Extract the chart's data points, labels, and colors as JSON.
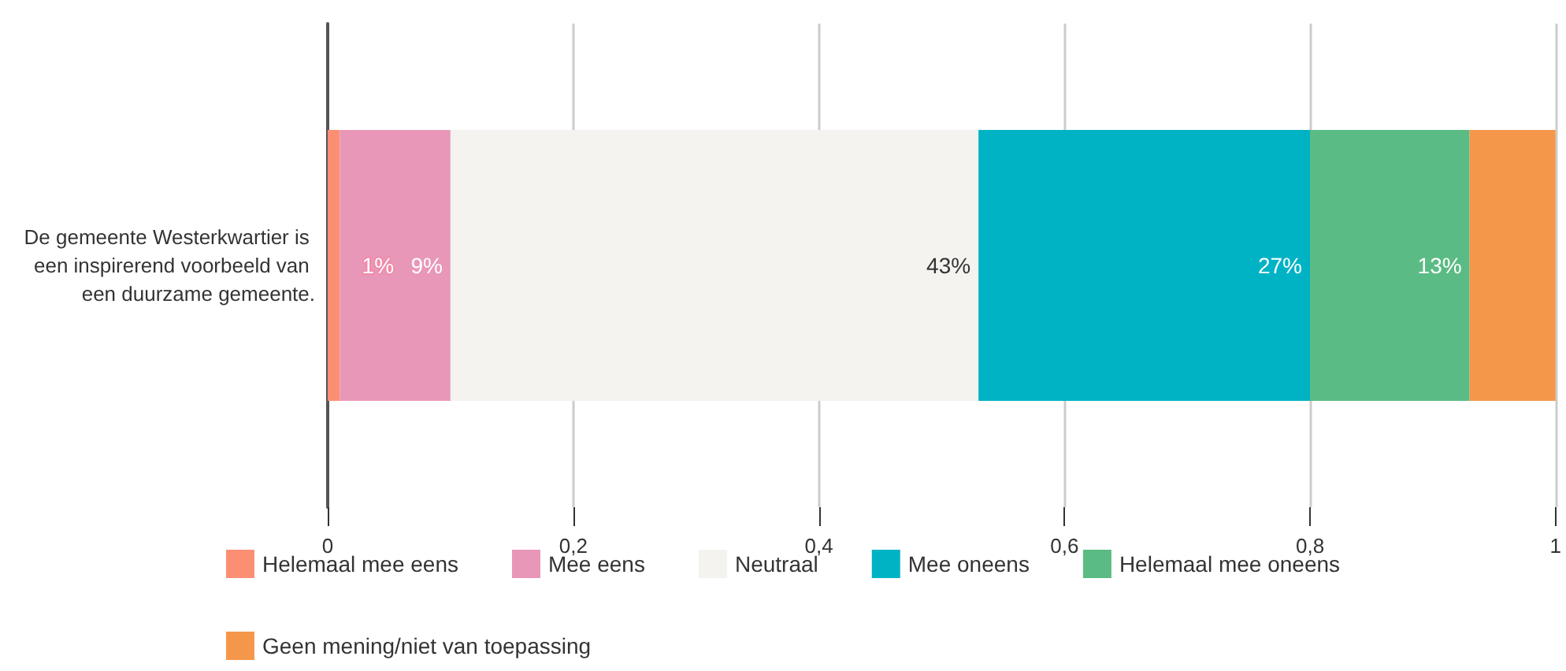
{
  "chart_data": {
    "type": "bar",
    "orientation": "horizontal",
    "stacked": true,
    "categories": [
      "De gemeente Westerkwartier is een inspirerend voorbeeld van een duurzame gemeente."
    ],
    "series": [
      {
        "name": "Helemaal mee eens",
        "color": "#fb8f74",
        "values": [
          0.01
        ],
        "value_labels": [
          "1%"
        ]
      },
      {
        "name": "Mee eens",
        "color": "#e897b8",
        "values": [
          0.09
        ],
        "value_labels": [
          "9%"
        ]
      },
      {
        "name": "Neutraal",
        "color": "#f4f3ef",
        "values": [
          0.43
        ],
        "value_labels": [
          "43%"
        ]
      },
      {
        "name": "Mee oneens",
        "color": "#00b3c4",
        "values": [
          0.27
        ],
        "value_labels": [
          "27%"
        ]
      },
      {
        "name": "Helemaal mee oneens",
        "color": "#5bbb84",
        "values": [
          0.13
        ],
        "value_labels": [
          "13%"
        ]
      },
      {
        "name": "Geen mening/niet van toepassing",
        "color": "#f5974a",
        "values": [
          0.07
        ],
        "value_labels": [
          null
        ]
      }
    ],
    "xlim": [
      0,
      1
    ],
    "xticks": [
      0,
      {
        "value": 0.2,
        "label": "0,2"
      },
      {
        "value": 0.4,
        "label": "0,4"
      },
      {
        "value": 0.6,
        "label": "0,6"
      },
      {
        "value": 0.8,
        "label": "0,8"
      },
      1
    ],
    "grid": "x",
    "legend": "bottom"
  }
}
